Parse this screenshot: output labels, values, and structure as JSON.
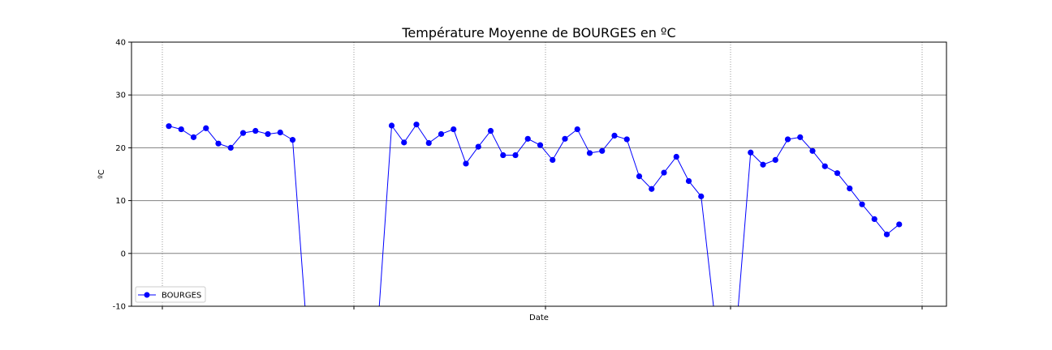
{
  "chart_data": {
    "type": "line",
    "title": "Température Moyenne de BOURGES en ºC",
    "xlabel": "Date",
    "ylabel": "ºC",
    "ylim": [
      -10,
      40
    ],
    "yticks": [
      -10,
      0,
      10,
      20,
      30,
      40
    ],
    "grid": "y solid, x dotted",
    "legend_position": "lower-left",
    "color": "#0000ff",
    "series": [
      {
        "name": "BOURGES",
        "segments": [
          [
            24.1,
            23.5,
            22.0,
            23.7,
            20.8,
            20.0,
            22.8,
            23.2,
            22.6,
            22.9,
            21.5,
            -10
          ],
          [
            -10,
            24.2,
            21.0,
            24.4,
            20.9,
            22.6,
            23.5,
            17.0,
            20.2,
            23.2,
            18.6,
            18.6,
            21.7,
            20.5,
            17.7,
            21.7,
            23.5,
            19.0,
            19.4,
            22.3,
            21.6,
            14.6,
            12.2,
            15.3,
            18.3,
            13.7,
            10.8,
            -10
          ],
          [
            -10,
            19.1,
            16.8,
            17.7,
            21.6,
            22.0,
            19.4,
            16.5,
            15.2,
            12.3,
            9.3,
            6.5,
            3.6,
            5.5
          ]
        ]
      }
    ]
  }
}
